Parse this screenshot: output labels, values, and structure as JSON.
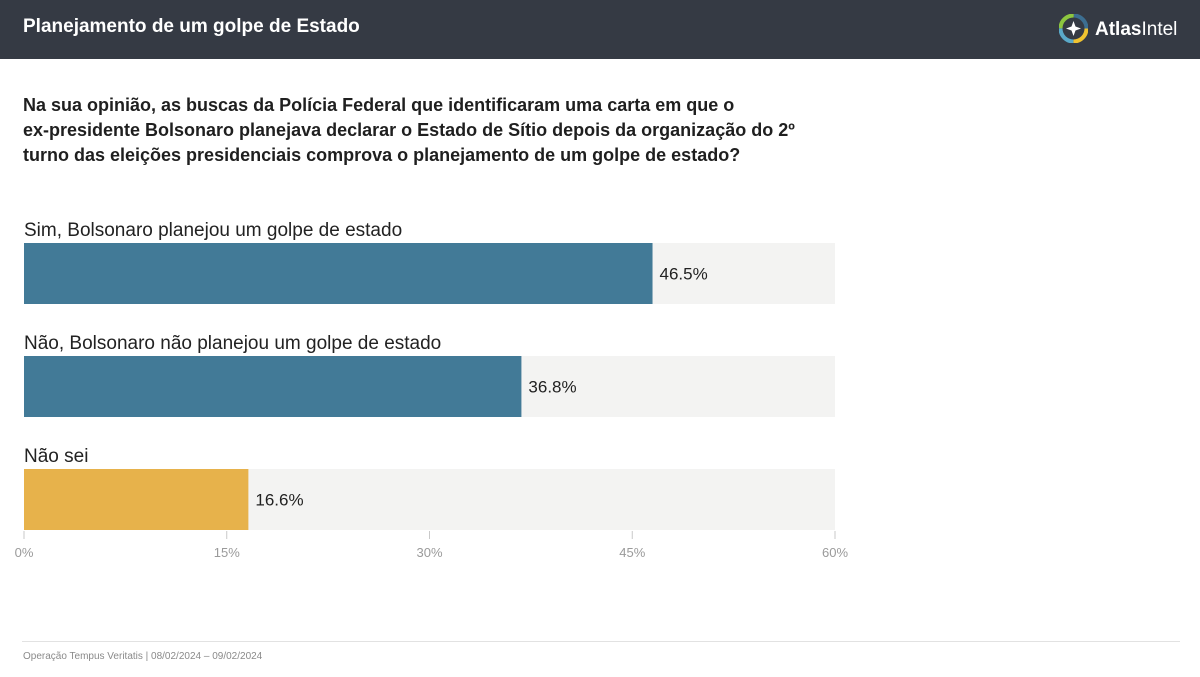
{
  "header": {
    "title": "Planejamento de um golpe de Estado",
    "logo": {
      "text_strong": "Atlas",
      "text_light": "Intel",
      "icon": "atlasintel-logo-icon",
      "colors": [
        "#f0c330",
        "#5aa9c9",
        "#8dc63f",
        "#3c6e91"
      ]
    },
    "background": "#353a44"
  },
  "question": {
    "lines": [
      "Na sua opinião, as buscas da Polícia Federal que identificaram uma carta em que o",
      "ex-presidente Bolsonaro planejava declarar o Estado de Sítio depois da organização do 2º",
      "turno das eleições presidenciais comprova o planejamento de um golpe de estado?"
    ]
  },
  "chart_data": {
    "type": "bar",
    "orientation": "horizontal",
    "title": "",
    "xlabel": "",
    "ylabel": "",
    "categories": [
      "Sim, Bolsonaro planejou um golpe de estado",
      "Não, Bolsonaro não planejou um golpe de estado",
      "Não sei"
    ],
    "values": [
      46.5,
      36.8,
      16.6
    ],
    "value_labels": [
      "46.5%",
      "36.8%",
      "16.6%"
    ],
    "colors": [
      "#427a97",
      "#427a97",
      "#e7b24b"
    ],
    "track_color": "#f3f3f2",
    "xlim": [
      0,
      60
    ],
    "xticks": [
      0,
      15,
      30,
      45,
      60
    ],
    "xtick_labels": [
      "0%",
      "15%",
      "30%",
      "45%",
      "60%"
    ],
    "grid": false,
    "legend": "none"
  },
  "footer": {
    "text": "Operação Tempus Veritatis | 08/02/2024 – 09/02/2024"
  }
}
